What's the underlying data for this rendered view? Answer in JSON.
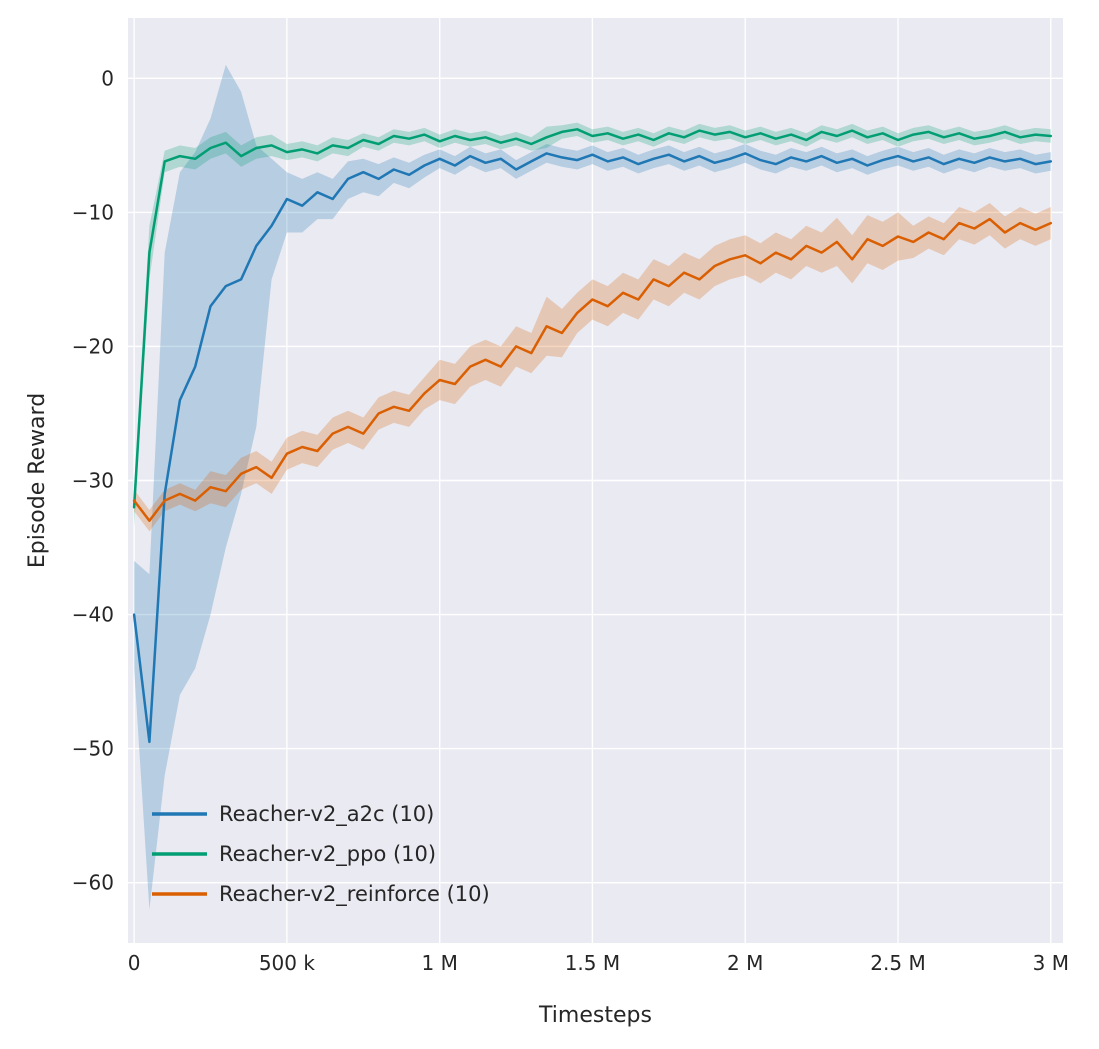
{
  "style": {
    "figure_bg": "#ffffff",
    "plot_bg": "#eaeaf2",
    "grid_color": "#ffffff",
    "text_color": "#262626",
    "band_alpha": 0.25,
    "line_width": 2.5
  },
  "chart_data": {
    "type": "line",
    "title": "",
    "xlabel": "Timesteps",
    "ylabel": "Episode Reward",
    "grid": true,
    "legend_position": "lower left",
    "xlim": [
      -20000,
      3040000
    ],
    "ylim": [
      -64.5,
      4.5
    ],
    "x_ticks": [
      {
        "v": 0,
        "label": "0"
      },
      {
        "v": 500000,
        "label": "500 k"
      },
      {
        "v": 1000000,
        "label": "1 M"
      },
      {
        "v": 1500000,
        "label": "1.5 M"
      },
      {
        "v": 2000000,
        "label": "2 M"
      },
      {
        "v": 2500000,
        "label": "2.5 M"
      },
      {
        "v": 3000000,
        "label": "3 M"
      }
    ],
    "y_ticks": [
      {
        "v": 0,
        "label": "0"
      },
      {
        "v": -10,
        "label": "−10"
      },
      {
        "v": -20,
        "label": "−20"
      },
      {
        "v": -30,
        "label": "−30"
      },
      {
        "v": -40,
        "label": "−40"
      },
      {
        "v": -50,
        "label": "−50"
      },
      {
        "v": -60,
        "label": "−60"
      }
    ],
    "x": [
      0,
      50000,
      100000,
      150000,
      200000,
      250000,
      300000,
      350000,
      400000,
      450000,
      500000,
      550000,
      600000,
      650000,
      700000,
      750000,
      800000,
      850000,
      900000,
      950000,
      1000000,
      1050000,
      1100000,
      1150000,
      1200000,
      1250000,
      1300000,
      1350000,
      1400000,
      1450000,
      1500000,
      1550000,
      1600000,
      1650000,
      1700000,
      1750000,
      1800000,
      1850000,
      1900000,
      1950000,
      2000000,
      2050000,
      2100000,
      2150000,
      2200000,
      2250000,
      2300000,
      2350000,
      2400000,
      2450000,
      2500000,
      2550000,
      2600000,
      2650000,
      2700000,
      2750000,
      2800000,
      2850000,
      2900000,
      2950000,
      3000000
    ],
    "series": [
      {
        "id": "a2c",
        "name": "Reacher-v2_a2c (10)",
        "color": "#1f77b4",
        "values": [
          -40,
          -49.5,
          -31,
          -24,
          -21.5,
          -17,
          -15.5,
          -15,
          -12.5,
          -11,
          -9,
          -9.5,
          -8.5,
          -9,
          -7.5,
          -7,
          -7.5,
          -6.8,
          -7.2,
          -6.5,
          -6.0,
          -6.5,
          -5.8,
          -6.3,
          -6.0,
          -6.8,
          -6.2,
          -5.6,
          -5.9,
          -6.1,
          -5.7,
          -6.2,
          -5.9,
          -6.4,
          -6.0,
          -5.7,
          -6.2,
          -5.8,
          -6.3,
          -6.0,
          -5.6,
          -6.1,
          -6.4,
          -5.9,
          -6.2,
          -5.8,
          -6.3,
          -6.0,
          -6.5,
          -6.1,
          -5.8,
          -6.2,
          -5.9,
          -6.4,
          -6.0,
          -6.3,
          -5.9,
          -6.2,
          -6.0,
          -6.4,
          -6.2
        ],
        "band_lo": [
          -44,
          -62,
          -52,
          -46,
          -44,
          -40,
          -35,
          -31,
          -26,
          -15,
          -11.5,
          -11.5,
          -10.5,
          -10.5,
          -9,
          -8.5,
          -8.8,
          -7.8,
          -8.2,
          -7.4,
          -6.7,
          -7.2,
          -6.5,
          -7.0,
          -6.7,
          -7.5,
          -6.9,
          -6.3,
          -6.6,
          -6.8,
          -6.4,
          -6.9,
          -6.6,
          -7.1,
          -6.7,
          -6.4,
          -6.9,
          -6.5,
          -7.0,
          -6.7,
          -6.3,
          -6.8,
          -7.1,
          -6.6,
          -6.9,
          -6.5,
          -7.0,
          -6.7,
          -7.2,
          -6.8,
          -6.5,
          -6.9,
          -6.6,
          -7.1,
          -6.7,
          -7.0,
          -6.6,
          -6.9,
          -6.7,
          -7.1,
          -6.9
        ],
        "band_hi": [
          -36,
          -37,
          -13,
          -7,
          -5.5,
          -3,
          1,
          -1,
          -5,
          -6,
          -7,
          -7.5,
          -7,
          -7.5,
          -6.2,
          -6,
          -6.4,
          -5.9,
          -6.3,
          -5.7,
          -5.3,
          -5.8,
          -5.1,
          -5.6,
          -5.3,
          -6.1,
          -5.5,
          -4.9,
          -5.2,
          -5.4,
          -5.0,
          -5.5,
          -5.2,
          -5.7,
          -5.3,
          -5.0,
          -5.5,
          -5.1,
          -5.6,
          -5.3,
          -4.9,
          -5.4,
          -5.7,
          -5.2,
          -5.5,
          -5.1,
          -5.6,
          -5.3,
          -5.8,
          -5.4,
          -5.1,
          -5.5,
          -5.2,
          -5.7,
          -5.3,
          -5.6,
          -5.2,
          -5.5,
          -5.3,
          -5.7,
          -5.5
        ]
      },
      {
        "id": "ppo",
        "name": "Reacher-v2_ppo (10)",
        "color": "#029e73",
        "values": [
          -32,
          -13,
          -6.2,
          -5.8,
          -6.0,
          -5.2,
          -4.8,
          -5.8,
          -5.2,
          -5.0,
          -5.5,
          -5.3,
          -5.6,
          -5.0,
          -5.2,
          -4.6,
          -4.9,
          -4.3,
          -4.5,
          -4.2,
          -4.7,
          -4.3,
          -4.6,
          -4.4,
          -4.8,
          -4.5,
          -4.9,
          -4.4,
          -4.0,
          -3.8,
          -4.3,
          -4.1,
          -4.5,
          -4.2,
          -4.6,
          -4.1,
          -4.4,
          -3.9,
          -4.2,
          -4.0,
          -4.4,
          -4.1,
          -4.5,
          -4.2,
          -4.6,
          -4.0,
          -4.3,
          -3.9,
          -4.4,
          -4.1,
          -4.6,
          -4.2,
          -4.0,
          -4.4,
          -4.1,
          -4.5,
          -4.3,
          -4.0,
          -4.4,
          -4.2,
          -4.3
        ],
        "band": [
          1.5,
          2.0,
          0.8,
          0.8,
          0.8,
          0.8,
          0.8,
          0.8,
          0.8,
          0.8,
          0.6,
          0.6,
          0.6,
          0.6,
          0.6,
          0.5,
          0.5,
          0.5,
          0.5,
          0.5,
          0.5,
          0.5,
          0.5,
          0.5,
          0.5,
          0.5,
          0.5,
          0.8,
          0.5,
          0.5,
          0.5,
          0.5,
          0.5,
          0.5,
          0.5,
          0.5,
          0.5,
          0.5,
          0.5,
          0.5,
          0.5,
          0.5,
          0.5,
          0.5,
          0.5,
          0.5,
          0.5,
          0.5,
          0.5,
          0.5,
          0.5,
          0.5,
          0.5,
          0.5,
          0.5,
          0.5,
          0.5,
          0.5,
          0.5,
          0.5,
          0.5
        ]
      },
      {
        "id": "reinforce",
        "name": "Reacher-v2_reinforce (10)",
        "color": "#d95f02",
        "values": [
          -31.5,
          -33,
          -31.5,
          -31,
          -31.5,
          -30.5,
          -30.8,
          -29.5,
          -29,
          -29.8,
          -28,
          -27.5,
          -27.8,
          -26.5,
          -26,
          -26.5,
          -25,
          -24.5,
          -24.8,
          -23.5,
          -22.5,
          -22.8,
          -21.5,
          -21,
          -21.5,
          -20,
          -20.5,
          -18.5,
          -19,
          -17.5,
          -16.5,
          -17,
          -16,
          -16.5,
          -15,
          -15.5,
          -14.5,
          -15,
          -14,
          -13.5,
          -13.2,
          -13.8,
          -13,
          -13.5,
          -12.5,
          -13,
          -12.2,
          -13.5,
          -12,
          -12.5,
          -11.8,
          -12.2,
          -11.5,
          -12,
          -10.8,
          -11.2,
          -10.5,
          -11.5,
          -10.8,
          -11.3,
          -10.8
        ],
        "band": [
          0.8,
          0.8,
          0.8,
          0.8,
          0.8,
          1.2,
          1.2,
          1.2,
          1.2,
          1.2,
          1.2,
          1.2,
          1.2,
          1.2,
          1.2,
          1.2,
          1.2,
          1.2,
          1.2,
          1.2,
          1.5,
          1.5,
          1.5,
          1.5,
          1.5,
          1.5,
          1.5,
          2.2,
          1.8,
          1.5,
          1.5,
          1.5,
          1.5,
          1.5,
          1.5,
          1.5,
          1.5,
          1.5,
          1.5,
          1.5,
          1.5,
          1.5,
          1.5,
          1.5,
          1.5,
          1.5,
          1.8,
          1.8,
          1.8,
          1.8,
          1.8,
          1.2,
          1.2,
          1.2,
          1.2,
          1.2,
          1.2,
          1.2,
          1.2,
          1.2,
          1.2
        ]
      }
    ],
    "legend": [
      {
        "label": "Reacher-v2_a2c (10)",
        "color": "#1f77b4"
      },
      {
        "label": "Reacher-v2_ppo (10)",
        "color": "#029e73"
      },
      {
        "label": "Reacher-v2_reinforce (10)",
        "color": "#d95f02"
      }
    ]
  }
}
